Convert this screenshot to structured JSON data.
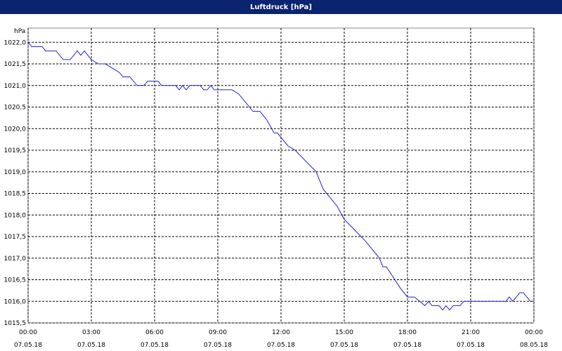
{
  "chart_data": {
    "type": "line",
    "title": "Luftdruck [hPa]",
    "y_label": "hPa",
    "x": [
      0,
      0.17,
      0.67,
      0.83,
      1.33,
      1.67,
      2,
      2.33,
      2.5,
      2.67,
      3,
      3.33,
      3.67,
      4,
      4.33,
      4.5,
      4.83,
      5.17,
      5.5,
      5.67,
      6.17,
      6.33,
      7,
      7.17,
      7.33,
      7.5,
      7.67,
      8.17,
      8.33,
      8.5,
      8.67,
      8.83,
      9.67,
      10,
      10.67,
      11,
      11.33,
      11.67,
      11.83,
      12.33,
      12.67,
      13.67,
      14,
      14.67,
      15,
      16,
      16.67,
      16.83,
      17,
      17.67,
      18,
      18.33,
      18.83,
      19,
      19.17,
      19.5,
      19.67,
      19.83,
      20,
      20.17,
      20.5,
      20.67,
      22.67,
      22.83,
      23,
      23.33,
      23.5,
      23.83,
      24
    ],
    "series": [
      {
        "name": "Luftdruck",
        "color": "#2020d0",
        "values": [
          1022.0,
          1021.9,
          1021.9,
          1021.8,
          1021.8,
          1021.6,
          1021.6,
          1021.8,
          1021.7,
          1021.8,
          1021.6,
          1021.5,
          1021.5,
          1021.4,
          1021.3,
          1021.2,
          1021.2,
          1021.0,
          1021.0,
          1021.1,
          1021.1,
          1021.0,
          1021.0,
          1020.9,
          1021.0,
          1020.9,
          1021.0,
          1021.0,
          1020.9,
          1020.9,
          1021.0,
          1020.9,
          1020.9,
          1020.8,
          1020.4,
          1020.4,
          1020.2,
          1019.9,
          1019.9,
          1019.6,
          1019.5,
          1019.0,
          1018.6,
          1018.2,
          1017.9,
          1017.4,
          1017.0,
          1016.8,
          1016.8,
          1016.3,
          1016.1,
          1016.1,
          1015.9,
          1016.0,
          1015.9,
          1015.9,
          1015.8,
          1015.9,
          1015.8,
          1015.9,
          1015.9,
          1016.0,
          1016.0,
          1016.1,
          1016.0,
          1016.2,
          1016.2,
          1016.0,
          1016.0
        ]
      }
    ],
    "xlim": [
      0,
      24
    ],
    "xticks": [
      {
        "value": 0,
        "label": "00:00\n07.05.18"
      },
      {
        "value": 3,
        "label": "03:00\n07.05.18"
      },
      {
        "value": 6,
        "label": "06:00\n07.05.18"
      },
      {
        "value": 9,
        "label": "09:00\n07.05.18"
      },
      {
        "value": 12,
        "label": "12:00\n07.05.18"
      },
      {
        "value": 15,
        "label": "15:00\n07.05.18"
      },
      {
        "value": 18,
        "label": "18:00\n07.05.18"
      },
      {
        "value": 21,
        "label": "21:00\n07.05.18"
      },
      {
        "value": 24,
        "label": "00:00\n08.05.18"
      }
    ],
    "ylim": [
      1015.5,
      1022.33
    ],
    "yticks": [
      {
        "value": 1015.5,
        "label": "1015,5"
      },
      {
        "value": 1016.0,
        "label": "1016,0"
      },
      {
        "value": 1016.5,
        "label": "1016,5"
      },
      {
        "value": 1017.0,
        "label": "1017,0"
      },
      {
        "value": 1017.5,
        "label": "1017,5"
      },
      {
        "value": 1018.0,
        "label": "1018,0"
      },
      {
        "value": 1018.5,
        "label": "1018,5"
      },
      {
        "value": 1019.0,
        "label": "1019,0"
      },
      {
        "value": 1019.5,
        "label": "1019,5"
      },
      {
        "value": 1020.0,
        "label": "1020,0"
      },
      {
        "value": 1020.5,
        "label": "1020,5"
      },
      {
        "value": 1021.0,
        "label": "1021,0"
      },
      {
        "value": 1021.5,
        "label": "1021,5"
      },
      {
        "value": 1022.0,
        "label": "1022,0"
      }
    ],
    "grid": true
  }
}
